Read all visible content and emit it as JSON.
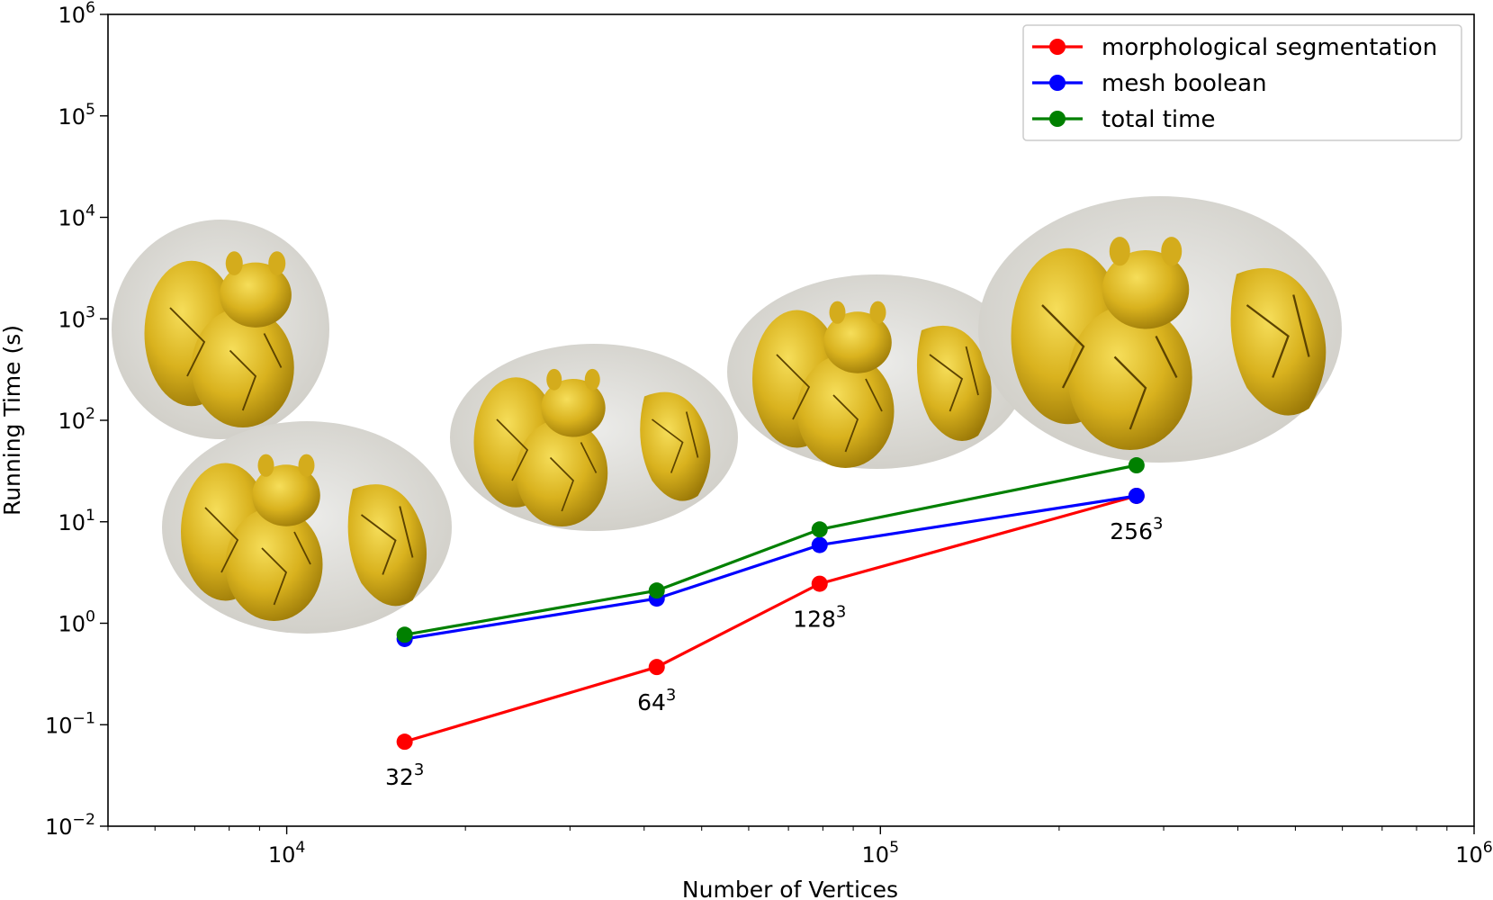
{
  "chart_data": {
    "type": "line",
    "xlabel": "Number of Vertices",
    "ylabel": "Running Time (s)",
    "x_scale": "log",
    "y_scale": "log",
    "xlim": [
      5000,
      1000000
    ],
    "ylim": [
      0.01,
      1000000
    ],
    "x_ticks": [
      {
        "value": 10000,
        "base": "10",
        "exp": "4"
      },
      {
        "value": 100000,
        "base": "10",
        "exp": "5"
      },
      {
        "value": 1000000,
        "base": "10",
        "exp": "6"
      }
    ],
    "y_ticks": [
      {
        "value": 0.01,
        "base": "10",
        "exp": "−2"
      },
      {
        "value": 0.1,
        "base": "10",
        "exp": "−1"
      },
      {
        "value": 1,
        "base": "10",
        "exp": "0"
      },
      {
        "value": 10,
        "base": "10",
        "exp": "1"
      },
      {
        "value": 100,
        "base": "10",
        "exp": "2"
      },
      {
        "value": 1000,
        "base": "10",
        "exp": "3"
      },
      {
        "value": 10000,
        "base": "10",
        "exp": "4"
      },
      {
        "value": 100000,
        "base": "10",
        "exp": "5"
      },
      {
        "value": 1000000,
        "base": "10",
        "exp": "6"
      }
    ],
    "x": [
      15800,
      42000,
      79000,
      270000
    ],
    "series": [
      {
        "name": "morphological segmentation",
        "color": "#ff0000",
        "values": [
          0.068,
          0.37,
          2.45,
          18.0
        ]
      },
      {
        "name": "mesh boolean",
        "color": "#0000ff",
        "values": [
          0.7,
          1.75,
          5.9,
          18.0
        ]
      },
      {
        "name": "total time",
        "color": "#008000",
        "values": [
          0.77,
          2.1,
          8.4,
          36.0
        ]
      }
    ],
    "point_labels": [
      {
        "x": 15800,
        "y": 0.068,
        "base": "32",
        "exp": "3"
      },
      {
        "x": 42000,
        "y": 0.37,
        "base": "64",
        "exp": "3"
      },
      {
        "x": 79000,
        "y": 2.45,
        "base": "128",
        "exp": "3"
      },
      {
        "x": 270000,
        "y": 18.0,
        "base": "256",
        "exp": "3"
      }
    ],
    "legend_position": "upper right",
    "grid": false
  }
}
